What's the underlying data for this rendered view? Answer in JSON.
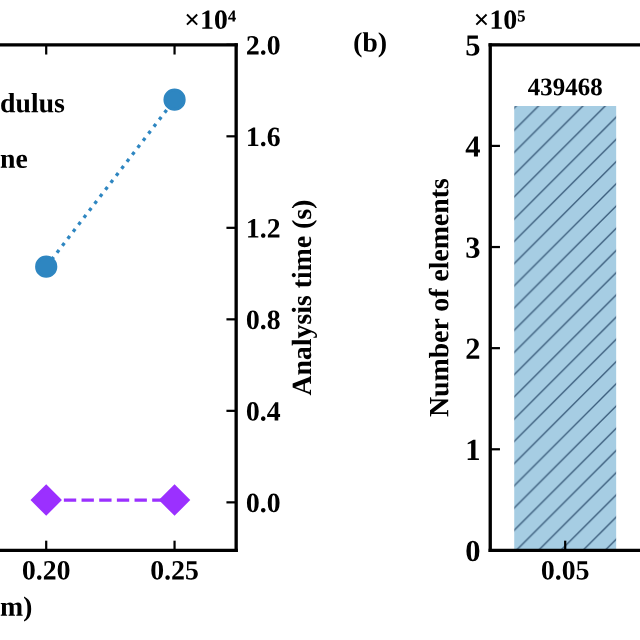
{
  "chart_data": [
    {
      "type": "line",
      "x": [
        0.2,
        0.25
      ],
      "xlim": [
        0.182,
        0.274
      ],
      "xticks": [
        {
          "value": 0.2,
          "label": "0.20"
        },
        {
          "value": 0.25,
          "label": "0.25"
        }
      ],
      "xlabel": "m)",
      "y2label": "Analysis time (s)",
      "y2lim": [
        -0.21,
        2.0
      ],
      "y2ticks": [
        {
          "value": 0,
          "label": "0.0"
        },
        0.4,
        0.8,
        1.2,
        1.6,
        {
          "value": 2,
          "label": "2.0"
        }
      ],
      "series": [
        {
          "color": "#2e86c1",
          "values": [
            1.03,
            1.76
          ],
          "axis": "y2",
          "marker": "circle",
          "line_style": "dotted"
        },
        {
          "color": "#9b30ff",
          "values": [
            0.01,
            0.01
          ],
          "axis": "y2",
          "marker": "diamond",
          "line_style": "dashed"
        }
      ],
      "annotations": [
        "×10⁴",
        "dulus",
        "ne"
      ],
      "grid": false
    },
    {
      "type": "bar",
      "title": "(b)",
      "categories": [
        "0.05"
      ],
      "values": [
        4.39468
      ],
      "color": "#a6cde3",
      "ylim": [
        0,
        5
      ],
      "yticks": [
        0,
        1,
        2,
        3,
        4,
        5
      ],
      "ylabel": "Number of elements",
      "annotations": [
        "×10⁵",
        {
          "text": "439468",
          "x": "0.05",
          "y": 4.39468
        }
      ],
      "grid": false
    }
  ]
}
